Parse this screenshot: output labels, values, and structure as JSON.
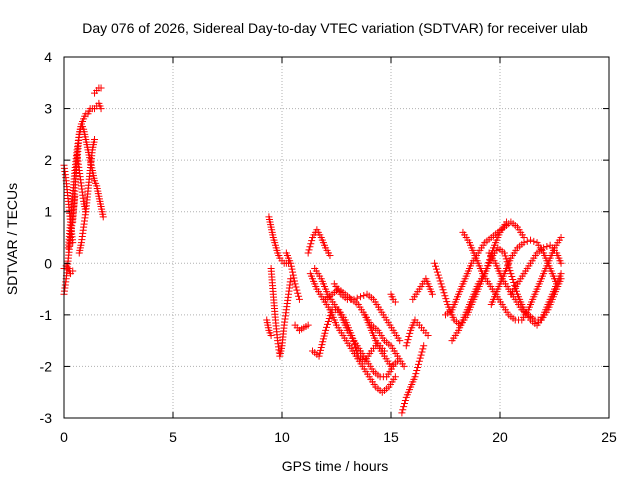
{
  "chart_data": {
    "type": "scatter",
    "title": "Day 076 of 2026, Sidereal Day-to-day VTEC variation (SDTVAR) for receiver ulab",
    "xlabel": "GPS time / hours",
    "ylabel": "SDTVAR / TECUs",
    "xlim": [
      0,
      25
    ],
    "ylim": [
      -3,
      4
    ],
    "xticks": [
      "0",
      "5",
      "10",
      "15",
      "20",
      "25"
    ],
    "yticks": [
      "-3",
      "-2",
      "-1",
      "0",
      "1",
      "2",
      "3",
      "4"
    ],
    "grid": true,
    "marker": "+",
    "series_color": "#ff0000",
    "tracks": [
      {
        "name": "early-1",
        "x": [
          0.0,
          0.1,
          0.2,
          0.3,
          0.4,
          0.5
        ],
        "y": [
          -0.6,
          -0.3,
          0.1,
          0.5,
          0.9,
          1.3
        ]
      },
      {
        "name": "early-2",
        "x": [
          0.0,
          0.1,
          0.2,
          0.3,
          0.4
        ],
        "y": [
          1.9,
          1.6,
          1.2,
          0.8,
          0.4
        ]
      },
      {
        "name": "early-3",
        "x": [
          0.2,
          0.3,
          0.4,
          0.5,
          0.6,
          0.7,
          0.8,
          0.9,
          1.0,
          1.1,
          1.2,
          1.3,
          1.4,
          1.5,
          1.6,
          1.7
        ],
        "y": [
          0.3,
          0.8,
          1.3,
          1.8,
          2.2,
          2.5,
          2.7,
          2.8,
          2.9,
          2.9,
          3.0,
          3.0,
          3.0,
          3.05,
          3.1,
          3.0
        ]
      },
      {
        "name": "early-4",
        "x": [
          0.4,
          0.5,
          0.6,
          0.7,
          0.8,
          0.9,
          1.0,
          1.1,
          1.2,
          1.3,
          1.4,
          1.5,
          1.6,
          1.7,
          1.8
        ],
        "y": [
          0.8,
          1.4,
          2.0,
          2.5,
          2.7,
          2.6,
          2.4,
          2.2,
          2.0,
          1.8,
          1.6,
          1.5,
          1.3,
          1.1,
          0.9
        ]
      },
      {
        "name": "early-5",
        "x": [
          0.6,
          0.7,
          0.8,
          0.9,
          1.0
        ],
        "y": [
          2.1,
          1.8,
          1.5,
          1.2,
          1.0
        ]
      },
      {
        "name": "early-6",
        "x": [
          0.7,
          0.8,
          0.9,
          1.0,
          1.1,
          1.2,
          1.3,
          1.4
        ],
        "y": [
          0.2,
          0.4,
          0.7,
          1.0,
          1.4,
          1.8,
          2.2,
          2.4
        ]
      },
      {
        "name": "early-7",
        "x": [
          0.0,
          0.1,
          0.2,
          0.3,
          0.4
        ],
        "y": [
          -0.1,
          -0.05,
          -0.1,
          -0.2,
          -0.15
        ]
      },
      {
        "name": "early-8",
        "x": [
          1.4,
          1.5,
          1.6,
          1.7
        ],
        "y": [
          3.3,
          3.35,
          3.4,
          3.4
        ]
      },
      {
        "name": "mid-1",
        "x": [
          9.4,
          9.5,
          9.6,
          9.7,
          9.8,
          9.9,
          10.0,
          10.1,
          10.2,
          10.3
        ],
        "y": [
          0.9,
          0.7,
          0.5,
          0.35,
          0.2,
          0.1,
          0.05,
          0.0,
          0.0,
          0.0
        ]
      },
      {
        "name": "mid-2",
        "x": [
          9.5,
          9.6,
          9.7,
          9.8,
          9.9,
          10.0,
          10.1,
          10.2,
          10.3,
          10.4
        ],
        "y": [
          -0.1,
          -0.6,
          -1.1,
          -1.5,
          -1.8,
          -1.6,
          -1.2,
          -0.9,
          -0.6,
          -0.3
        ]
      },
      {
        "name": "mid-3",
        "x": [
          9.3,
          9.4,
          9.5
        ],
        "y": [
          -1.1,
          -1.3,
          -1.4
        ]
      },
      {
        "name": "mid-4",
        "x": [
          10.2,
          10.4,
          10.6,
          10.8
        ],
        "y": [
          0.2,
          0.0,
          -0.4,
          -0.7
        ]
      },
      {
        "name": "mid-5",
        "x": [
          10.6,
          10.8,
          11.0,
          11.2
        ],
        "y": [
          -1.2,
          -1.3,
          -1.25,
          -1.2
        ]
      },
      {
        "name": "mid-6",
        "x": [
          11.2,
          11.4,
          11.6,
          11.8,
          12.0,
          12.2
        ],
        "y": [
          0.2,
          0.5,
          0.65,
          0.5,
          0.3,
          0.15
        ]
      },
      {
        "name": "mid-7",
        "x": [
          11.4,
          11.7,
          12.0,
          12.3,
          12.6,
          12.9,
          13.2,
          13.5,
          13.8,
          14.1,
          14.4,
          14.7
        ],
        "y": [
          -1.7,
          -1.8,
          -1.3,
          -0.9,
          -0.9,
          -1.1,
          -1.4,
          -1.8,
          -1.9,
          -1.7,
          -1.55,
          -1.7
        ]
      },
      {
        "name": "mid-8",
        "x": [
          11.3,
          11.6,
          11.9,
          12.2,
          12.5,
          12.8,
          13.1,
          13.4,
          13.7,
          14.0,
          14.3,
          14.6,
          14.9,
          15.2
        ],
        "y": [
          -0.2,
          -0.5,
          -0.7,
          -0.9,
          -1.2,
          -1.4,
          -1.6,
          -1.8,
          -2.0,
          -2.2,
          -2.4,
          -2.5,
          -2.4,
          -2.2
        ]
      },
      {
        "name": "mid-9",
        "x": [
          11.5,
          11.8,
          12.1,
          12.4,
          12.7,
          13.0,
          13.3,
          13.6,
          13.9,
          14.2,
          14.5,
          14.8,
          15.1
        ],
        "y": [
          -0.1,
          -0.3,
          -0.6,
          -0.8,
          -1.0,
          -1.3,
          -1.5,
          -1.7,
          -1.9,
          -2.1,
          -2.2,
          -2.2,
          -2.0
        ]
      },
      {
        "name": "mid-10",
        "x": [
          12.0,
          12.3,
          12.6,
          12.9,
          13.2,
          13.5,
          13.8,
          14.1,
          14.4,
          14.7,
          15.0,
          15.3
        ],
        "y": [
          -0.7,
          -0.6,
          -0.5,
          -0.6,
          -0.7,
          -0.8,
          -1.0,
          -1.3,
          -1.6,
          -1.8,
          -2.0,
          -1.9
        ]
      },
      {
        "name": "mid-11",
        "x": [
          12.4,
          12.7,
          13.0,
          13.3,
          13.6,
          13.9,
          14.2,
          14.5,
          14.8,
          15.1,
          15.4
        ],
        "y": [
          -0.4,
          -0.6,
          -0.7,
          -0.7,
          -0.65,
          -0.6,
          -0.7,
          -0.9,
          -1.1,
          -1.3,
          -1.5
        ]
      },
      {
        "name": "mid-12",
        "x": [
          13.8,
          14.1,
          14.4,
          14.7,
          15.0,
          15.3,
          15.6
        ],
        "y": [
          -1.0,
          -1.2,
          -1.3,
          -1.5,
          -1.6,
          -1.8,
          -2.0
        ]
      },
      {
        "name": "mid-13",
        "x": [
          15.0,
          15.1,
          15.2
        ],
        "y": [
          -0.6,
          -0.7,
          -0.75
        ]
      },
      {
        "name": "late-1",
        "x": [
          15.5,
          15.7,
          15.9,
          16.1,
          16.3,
          16.5
        ],
        "y": [
          -2.9,
          -2.6,
          -2.4,
          -2.2,
          -1.9,
          -1.6
        ]
      },
      {
        "name": "late-2",
        "x": [
          15.7,
          15.9,
          16.1,
          16.3,
          16.5,
          16.7
        ],
        "y": [
          -1.6,
          -1.3,
          -1.1,
          -1.2,
          -1.3,
          -1.4
        ]
      },
      {
        "name": "late-3",
        "x": [
          16.0,
          16.3,
          16.6,
          16.9
        ],
        "y": [
          -0.7,
          -0.5,
          -0.3,
          -0.6
        ]
      },
      {
        "name": "late-4",
        "x": [
          17.0,
          17.3,
          17.6,
          17.9,
          18.2,
          18.5,
          18.8,
          19.1,
          19.4,
          19.7,
          20.0,
          20.3
        ],
        "y": [
          0.0,
          -0.4,
          -0.8,
          -1.1,
          -1.2,
          -1.0,
          -0.7,
          -0.4,
          -0.1,
          0.3,
          0.6,
          0.8
        ]
      },
      {
        "name": "late-5",
        "x": [
          17.5,
          17.8,
          18.1,
          18.4,
          18.7,
          19.0,
          19.3,
          19.6,
          19.9,
          20.2,
          20.5,
          20.8,
          21.1
        ],
        "y": [
          -1.0,
          -0.9,
          -0.6,
          -0.3,
          0.0,
          0.2,
          0.4,
          0.5,
          0.6,
          0.7,
          0.8,
          0.7,
          0.5
        ]
      },
      {
        "name": "late-6",
        "x": [
          17.8,
          18.1,
          18.4,
          18.7,
          19.0,
          19.3,
          19.6,
          19.9,
          20.2,
          20.5,
          20.8,
          21.1,
          21.4,
          21.7,
          22.0,
          22.3,
          22.6
        ],
        "y": [
          -1.5,
          -1.3,
          -1.0,
          -0.7,
          -0.4,
          -0.2,
          0.1,
          0.3,
          0.2,
          -0.2,
          -0.6,
          -0.9,
          -1.1,
          -1.2,
          -1.0,
          -0.7,
          -0.4
        ]
      },
      {
        "name": "late-7",
        "x": [
          18.3,
          18.6,
          18.9,
          19.2,
          19.5,
          19.8,
          20.1,
          20.4,
          20.7,
          21.0,
          21.3,
          21.6,
          21.9,
          22.2,
          22.5,
          22.8
        ],
        "y": [
          0.6,
          0.4,
          0.1,
          -0.2,
          -0.4,
          -0.6,
          -0.8,
          -1.0,
          -1.1,
          -1.1,
          -0.9,
          -0.6,
          -0.3,
          0.0,
          0.3,
          0.5
        ]
      },
      {
        "name": "late-8",
        "x": [
          19.6,
          19.9,
          20.2,
          20.5,
          20.8,
          21.1,
          21.4,
          21.7,
          22.0,
          22.3,
          22.6,
          22.8
        ],
        "y": [
          -0.8,
          -0.5,
          -0.2,
          0.1,
          0.3,
          0.4,
          0.45,
          0.4,
          0.2,
          -0.1,
          -0.4,
          -0.2
        ]
      },
      {
        "name": "late-9",
        "x": [
          19.5,
          19.8,
          20.1,
          20.4,
          20.7,
          21.0,
          21.3,
          21.6,
          21.9,
          22.2,
          22.5,
          22.8
        ],
        "y": [
          0.2,
          0.0,
          -0.3,
          -0.5,
          -0.7,
          -0.9,
          -1.0,
          -1.1,
          -1.1,
          -0.9,
          -0.6,
          -0.3
        ]
      },
      {
        "name": "late-10",
        "x": [
          20.5,
          20.8,
          21.1,
          21.4,
          21.7,
          22.0,
          22.3,
          22.6,
          22.8
        ],
        "y": [
          -0.6,
          -0.4,
          -0.2,
          0.0,
          0.2,
          0.3,
          0.35,
          0.2,
          0.0
        ]
      }
    ]
  }
}
